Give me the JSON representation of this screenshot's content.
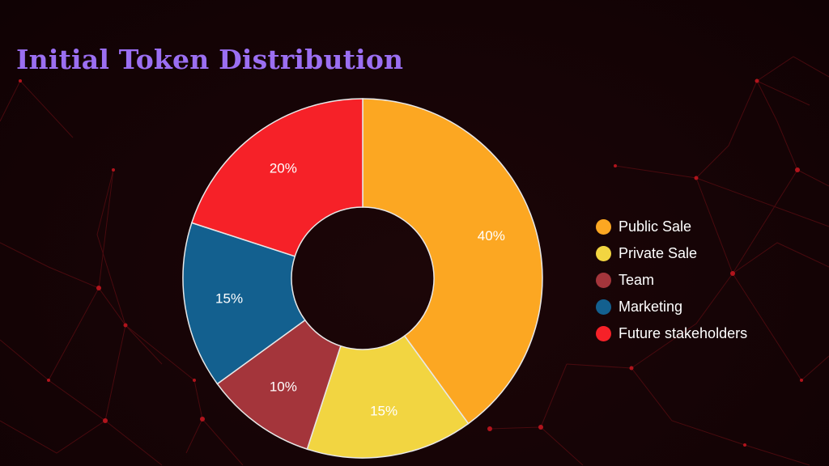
{
  "title": "Initial Token Distribution",
  "chart_data": {
    "type": "pie",
    "variant": "doughnut",
    "categories": [
      "Public Sale",
      "Private Sale",
      "Team",
      "Marketing",
      "Future stakeholders"
    ],
    "values": [
      40,
      15,
      10,
      15,
      20
    ],
    "labels": [
      "40%",
      "15%",
      "10%",
      "15%",
      "20%"
    ],
    "colors": [
      "#fca722",
      "#f2d541",
      "#a4353b",
      "#13608f",
      "#f62128"
    ],
    "legend_position": "right",
    "start_angle_deg": 0,
    "direction": "clockwise"
  },
  "colors": {
    "title": "#9b6ff2",
    "background": "#150406",
    "slice_border": "#e8e8e8"
  }
}
